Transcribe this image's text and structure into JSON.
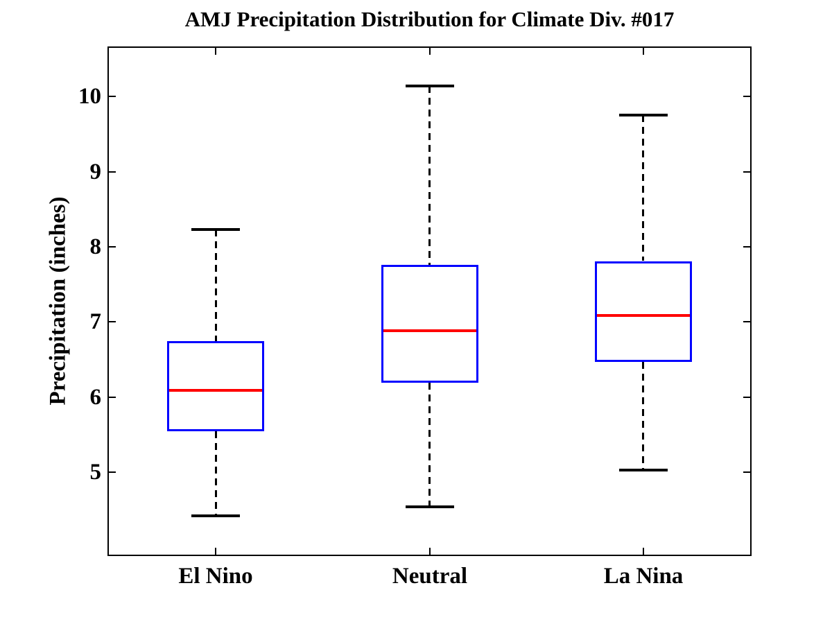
{
  "chart_data": {
    "type": "boxplot",
    "title": "AMJ Precipitation Distribution for Climate Div. #017",
    "xlabel": "",
    "ylabel": "Precipitation (inches)",
    "categories": [
      "El Nino",
      "Neutral",
      "La Nina"
    ],
    "yticks": [
      5,
      6,
      7,
      8,
      9,
      10
    ],
    "ylim": [
      3.9,
      10.65
    ],
    "grid": false,
    "legend": null,
    "series": [
      {
        "name": "El Nino",
        "whisker_low": 4.42,
        "q1": 5.54,
        "median": 6.09,
        "q3": 6.74,
        "whisker_high": 8.23
      },
      {
        "name": "Neutral",
        "whisker_low": 4.54,
        "q1": 6.19,
        "median": 6.88,
        "q3": 7.76,
        "whisker_high": 10.14
      },
      {
        "name": "La Nina",
        "whisker_low": 5.03,
        "q1": 6.47,
        "median": 7.09,
        "q3": 7.81,
        "whisker_high": 9.75
      }
    ],
    "colors": {
      "background": "#ffffff",
      "box": "#0000ff",
      "median": "#ff0000",
      "whisker": "#000000",
      "axis": "#000000"
    }
  }
}
